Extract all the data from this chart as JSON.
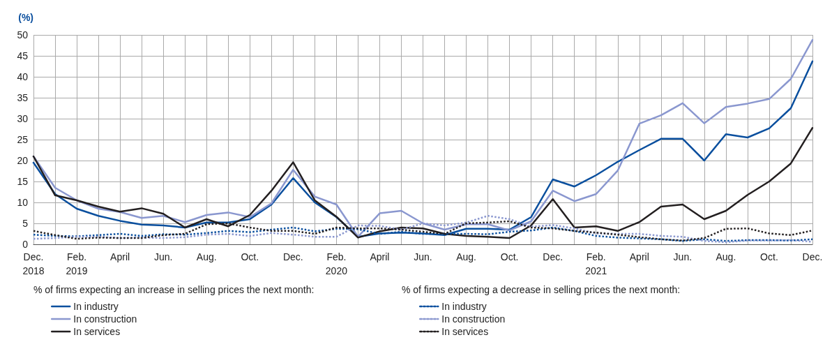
{
  "chart_data": {
    "type": "line",
    "ylabel": "(%)",
    "categories": [
      "Dec.\n2018",
      null,
      "Feb.\n2019",
      null,
      "April",
      null,
      "Jun.",
      null,
      "Aug.",
      null,
      "Oct.",
      null,
      "Dec.",
      null,
      "Feb.\n2020",
      null,
      "April",
      null,
      "Jun.",
      null,
      "Aug.",
      null,
      "Oct.",
      null,
      "Dec.",
      null,
      "Feb.\n2021",
      null,
      "April",
      null,
      "Jun.",
      null,
      "Aug.",
      null,
      "Oct.",
      null,
      "Dec."
    ],
    "ylim": [
      0,
      50
    ],
    "yticks": [
      0,
      5,
      10,
      15,
      20,
      25,
      30,
      35,
      40,
      45,
      50
    ],
    "grid": true,
    "legend": "bottom",
    "marker": "none",
    "annotations": [
      "% of firms expecting an increase in selling prices the next month:",
      "% of firms expecting a decrease in selling prices the next month:"
    ],
    "series": [
      {
        "name": "In industry",
        "color": "#0a4f9e",
        "line_style": "solid",
        "values": [
          19.5,
          12,
          8.5,
          6.8,
          5.6,
          4.7,
          4.5,
          4,
          5.2,
          5.2,
          6,
          9.5,
          15.8,
          10,
          6.5,
          1.8,
          2.6,
          2.8,
          2.6,
          2.2,
          3.7,
          3.7,
          3.5,
          6.5,
          15.5,
          13.8,
          16.5,
          19.7,
          22.5,
          25.2,
          25.2,
          20,
          26.3,
          25.5,
          27.7,
          32.5,
          43.7
        ]
      },
      {
        "name": "In construction",
        "color": "#8a97cf",
        "line_style": "solid",
        "values": [
          21,
          13.5,
          10.5,
          8.5,
          7.7,
          6.3,
          6.8,
          5.3,
          7,
          7.6,
          6.5,
          9.8,
          17.8,
          11.4,
          9.5,
          1.8,
          7.4,
          8,
          5,
          3.5,
          4.8,
          4.8,
          3.3,
          5.5,
          12.8,
          10.3,
          12,
          17.6,
          28.8,
          30.8,
          33.7,
          28.9,
          32.8,
          33.6,
          34.7,
          39.5,
          48.8
        ]
      },
      {
        "name": "In services",
        "color": "#231f20",
        "line_style": "solid",
        "values": [
          21,
          11.7,
          10.5,
          9,
          7.8,
          8.6,
          7.3,
          4,
          6,
          4.3,
          7,
          12.8,
          19.6,
          10.5,
          6.6,
          1.6,
          3.1,
          4,
          3.8,
          2.5,
          2,
          1.8,
          1.5,
          4.5,
          10.8,
          4,
          4.3,
          3.2,
          5.3,
          9,
          9.5,
          6,
          8,
          11.8,
          15,
          19.3,
          27.8
        ]
      },
      {
        "name": "In industry",
        "color": "#0a4f9e",
        "line_style": "dotted",
        "values": [
          2.3,
          2,
          1.9,
          2.2,
          2.5,
          2,
          2.4,
          2.3,
          2.7,
          3.2,
          2.9,
          3.5,
          4,
          3.1,
          3.7,
          3.6,
          2.5,
          3,
          2.5,
          2.5,
          2.5,
          2.4,
          3,
          3.3,
          4,
          3.2,
          2,
          1.6,
          1.4,
          1.2,
          0.8,
          1.2,
          0.8,
          1,
          1,
          0.9,
          1.2
        ]
      },
      {
        "name": "In construction",
        "color": "#8a97cf",
        "line_style": "dotted",
        "values": [
          1.3,
          1.5,
          1.8,
          1.8,
          1.5,
          1.6,
          1.5,
          1.7,
          2.3,
          2.5,
          2,
          2.7,
          2.3,
          1.8,
          1.8,
          4.5,
          4.4,
          3.5,
          5,
          4.5,
          5.2,
          6.8,
          6,
          4.2,
          4.6,
          3.8,
          2.6,
          2.5,
          2.5,
          2,
          1.8,
          0.8,
          0.5,
          0.9,
          0.9,
          1,
          0.6
        ]
      },
      {
        "name": "In services",
        "color": "#231f20",
        "line_style": "dotted",
        "values": [
          3.2,
          2.2,
          1.3,
          1.6,
          1.5,
          1.5,
          2.2,
          2.5,
          4.8,
          5,
          4,
          3.2,
          3.2,
          2.5,
          4,
          3.8,
          3.8,
          3.5,
          3,
          2.5,
          5,
          5.2,
          5.5,
          4,
          3.8,
          3.2,
          2.8,
          2.3,
          1.7,
          1.2,
          0.9,
          1.5,
          3.7,
          3.8,
          2.6,
          2.2,
          3.3
        ]
      }
    ]
  }
}
